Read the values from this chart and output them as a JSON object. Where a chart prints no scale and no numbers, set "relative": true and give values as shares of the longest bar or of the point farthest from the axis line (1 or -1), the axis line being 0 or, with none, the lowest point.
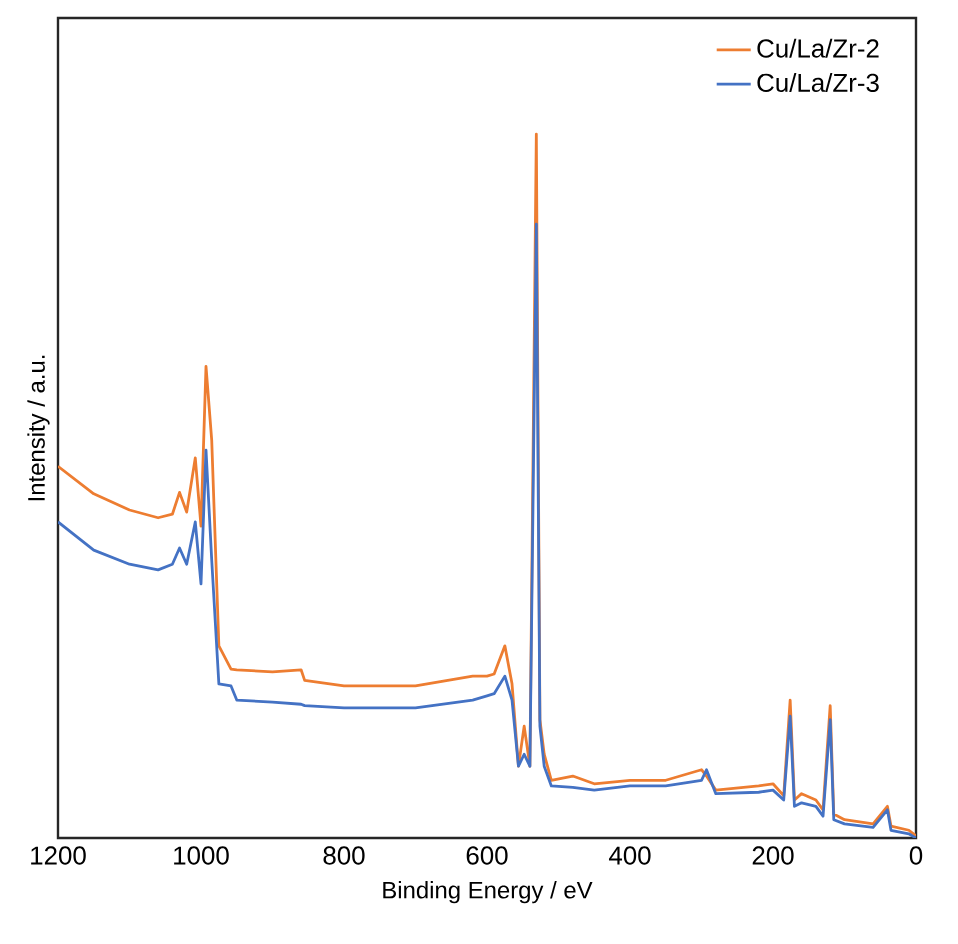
{
  "chart_data": {
    "type": "line",
    "xlabel": "Binding Energy / eV",
    "ylabel": "Intensity / a.u.",
    "relative": true,
    "x": [
      1200,
      1150,
      1100,
      1060,
      1040,
      1030,
      1020,
      1008,
      1000,
      993,
      985,
      975,
      958,
      950,
      900,
      860,
      855,
      800,
      700,
      620,
      600,
      590,
      575,
      565,
      556,
      548,
      540,
      531,
      526,
      520,
      510,
      480,
      450,
      400,
      350,
      300,
      293,
      280,
      220,
      200,
      185,
      176,
      170,
      160,
      140,
      130,
      120,
      115,
      100,
      60,
      40,
      35,
      10,
      0
    ],
    "series": [
      {
        "name": "Cu/La/Zr-2",
        "color": "#ed7d31",
        "values": [
          0.528,
          0.489,
          0.466,
          0.455,
          0.46,
          0.491,
          0.463,
          0.54,
          0.443,
          0.67,
          0.565,
          0.273,
          0.24,
          0.239,
          0.236,
          0.239,
          0.224,
          0.216,
          0.216,
          0.23,
          0.23,
          0.233,
          0.273,
          0.219,
          0.102,
          0.159,
          0.102,
          1,
          0.168,
          0.119,
          0.082,
          0.088,
          0.077,
          0.082,
          0.082,
          0.097,
          0.088,
          0.068,
          0.074,
          0.077,
          0.06,
          0.196,
          0.054,
          0.063,
          0.054,
          0.04,
          0.188,
          0.034,
          0.026,
          0.02,
          0.045,
          0.017,
          0.011,
          0.003
        ]
      },
      {
        "name": "Cu/La/Zr-3",
        "color": "#4472c4",
        "values": [
          0.449,
          0.409,
          0.389,
          0.381,
          0.389,
          0.412,
          0.389,
          0.449,
          0.361,
          0.551,
          0.395,
          0.219,
          0.216,
          0.196,
          0.193,
          0.19,
          0.188,
          0.185,
          0.185,
          0.196,
          0.202,
          0.205,
          0.23,
          0.196,
          0.102,
          0.119,
          0.102,
          0.872,
          0.159,
          0.102,
          0.074,
          0.072,
          0.068,
          0.074,
          0.074,
          0.082,
          0.097,
          0.063,
          0.065,
          0.068,
          0.054,
          0.173,
          0.045,
          0.05,
          0.045,
          0.031,
          0.168,
          0.026,
          0.02,
          0.015,
          0.04,
          0.011,
          0.006,
          0
        ]
      }
    ],
    "xlim": [
      1200,
      0
    ],
    "xticks": [
      1200,
      1000,
      800,
      600,
      400,
      200,
      0
    ],
    "legend": "top right",
    "line_style": "solid",
    "marker": "none"
  }
}
